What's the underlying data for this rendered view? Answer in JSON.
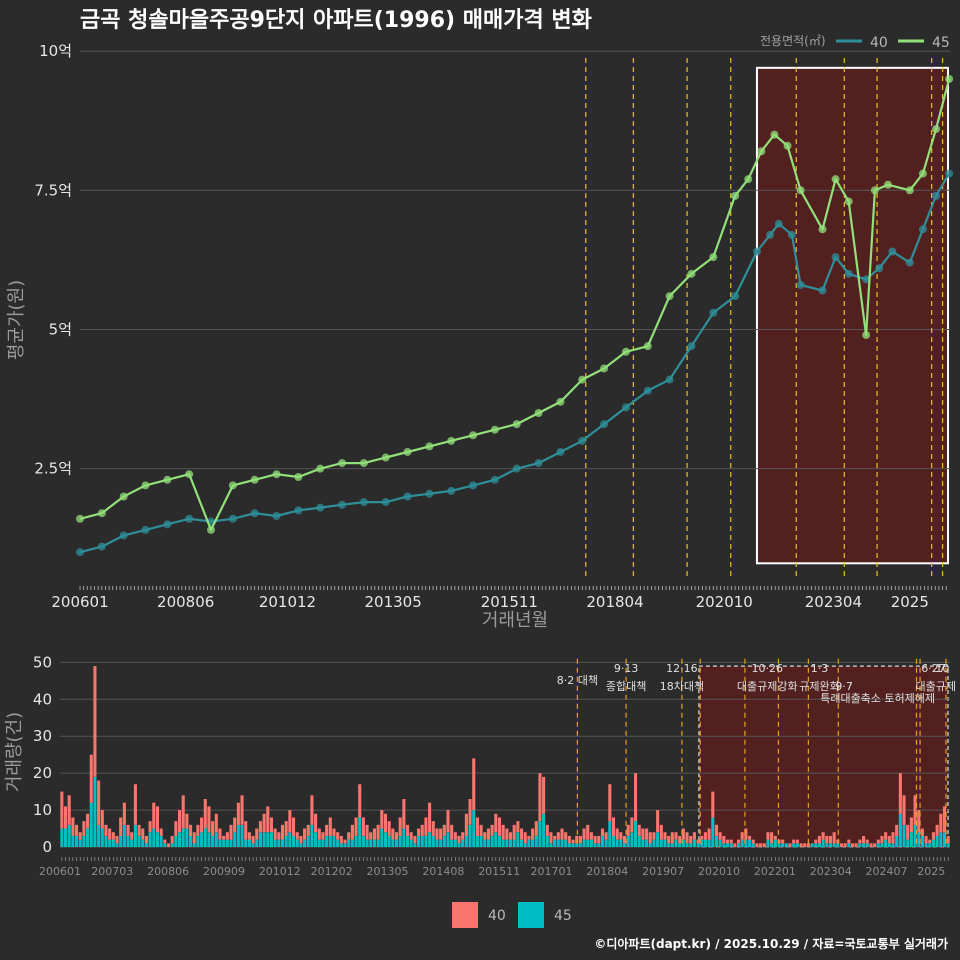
{
  "title": "금곡 청솔마을주공9단지 아파트(1996) 매매가격 변화",
  "credit": "©디아파트(dapt.kr) / 2025.10.29 / 자료=국토교통부 실거래가",
  "colors": {
    "background": "#2b2b2b",
    "line40": "#2e8f99",
    "line45": "#93e07a",
    "bar40": "#f8766d",
    "bar45": "#00bfc4",
    "policy": "#e6c229",
    "highlight": "#5a1e1e"
  },
  "chart_data": [
    {
      "type": "line",
      "name": "price",
      "ylabel": "평균가(원)",
      "xlabel": "거래년월",
      "ylim": [
        0.5,
        10.2
      ],
      "xlim": [
        2006.0,
        2025.92
      ],
      "yticks": [
        {
          "value": 2.5,
          "label": "2.5억"
        },
        {
          "value": 5.0,
          "label": "5억"
        },
        {
          "value": 7.5,
          "label": "7.5억"
        },
        {
          "value": 10.0,
          "label": "10억"
        }
      ],
      "xticks": [
        {
          "value": 2006.0,
          "label": "200601"
        },
        {
          "value": 2008.42,
          "label": "200806"
        },
        {
          "value": 2010.75,
          "label": "201012"
        },
        {
          "value": 2013.17,
          "label": "201305"
        },
        {
          "value": 2015.83,
          "label": "201511"
        },
        {
          "value": 2018.25,
          "label": "201804"
        },
        {
          "value": 2020.75,
          "label": "202010"
        },
        {
          "value": 2023.25,
          "label": "202304"
        },
        {
          "value": 2025.0,
          "label": "2025"
        }
      ],
      "legend_title": "전용면적(㎡)",
      "highlight_range": [
        2021.5,
        2025.92
      ],
      "highlight_ylim": [
        0.8,
        9.7
      ],
      "policy_lines": [
        2017.58,
        2018.67,
        2019.9,
        2020.9,
        2022.4,
        2023.5,
        2024.25,
        2025.5,
        2025.75
      ],
      "series": [
        {
          "name": "40",
          "color": "#2e8f99",
          "x": [
            2006.0,
            2006.5,
            2007.0,
            2007.5,
            2008.0,
            2008.5,
            2009.0,
            2009.5,
            2010.0,
            2010.5,
            2011.0,
            2011.5,
            2012.0,
            2012.5,
            2013.0,
            2013.5,
            2014.0,
            2014.5,
            2015.0,
            2015.5,
            2016.0,
            2016.5,
            2017.0,
            2017.5,
            2018.0,
            2018.5,
            2019.0,
            2019.5,
            2020.0,
            2020.5,
            2021.0,
            2021.5,
            2021.8,
            2022.0,
            2022.3,
            2022.5,
            2023.0,
            2023.3,
            2023.6,
            2024.0,
            2024.3,
            2024.6,
            2025.0,
            2025.3,
            2025.6,
            2025.9
          ],
          "y": [
            1.0,
            1.1,
            1.3,
            1.4,
            1.5,
            1.6,
            1.55,
            1.6,
            1.7,
            1.65,
            1.75,
            1.8,
            1.85,
            1.9,
            1.9,
            2.0,
            2.05,
            2.1,
            2.2,
            2.3,
            2.5,
            2.6,
            2.8,
            3.0,
            3.3,
            3.6,
            3.9,
            4.1,
            4.7,
            5.3,
            5.6,
            6.4,
            6.7,
            6.9,
            6.7,
            5.8,
            5.7,
            6.3,
            6.0,
            5.9,
            6.1,
            6.4,
            6.2,
            6.8,
            7.4,
            7.8
          ]
        },
        {
          "name": "45",
          "color": "#93e07a",
          "x": [
            2006.0,
            2006.5,
            2007.0,
            2007.5,
            2008.0,
            2008.5,
            2009.0,
            2009.5,
            2010.0,
            2010.5,
            2011.0,
            2011.5,
            2012.0,
            2012.5,
            2013.0,
            2013.5,
            2014.0,
            2014.5,
            2015.0,
            2015.5,
            2016.0,
            2016.5,
            2017.0,
            2017.5,
            2018.0,
            2018.5,
            2019.0,
            2019.5,
            2020.0,
            2020.5,
            2021.0,
            2021.3,
            2021.6,
            2021.9,
            2022.2,
            2022.5,
            2023.0,
            2023.3,
            2023.6,
            2024.0,
            2024.2,
            2024.5,
            2025.0,
            2025.3,
            2025.6,
            2025.9
          ],
          "y": [
            1.6,
            1.7,
            2.0,
            2.2,
            2.3,
            2.4,
            1.4,
            2.2,
            2.3,
            2.4,
            2.35,
            2.5,
            2.6,
            2.6,
            2.7,
            2.8,
            2.9,
            3.0,
            3.1,
            3.2,
            3.3,
            3.5,
            3.7,
            4.1,
            4.3,
            4.6,
            4.7,
            5.6,
            6.0,
            6.3,
            7.4,
            7.7,
            8.2,
            8.5,
            8.3,
            7.5,
            6.8,
            7.7,
            7.3,
            4.9,
            7.5,
            7.6,
            7.5,
            7.8,
            8.6,
            9.5
          ]
        }
      ]
    },
    {
      "type": "bar",
      "name": "volume",
      "stacked": true,
      "ylabel": "거래량(건)",
      "ylim": [
        0,
        52
      ],
      "yticks": [
        0,
        10,
        20,
        30,
        40,
        50
      ],
      "xticks": [
        {
          "value": 2006.0,
          "label": "200601"
        },
        {
          "value": 2007.17,
          "label": "200703"
        },
        {
          "value": 2008.42,
          "label": "200806"
        },
        {
          "value": 2009.67,
          "label": "200909"
        },
        {
          "value": 2010.92,
          "label": "201012"
        },
        {
          "value": 2012.08,
          "label": "201202"
        },
        {
          "value": 2013.33,
          "label": "201305"
        },
        {
          "value": 2014.58,
          "label": "201408"
        },
        {
          "value": 2015.83,
          "label": "201511"
        },
        {
          "value": 2017.0,
          "label": "201701"
        },
        {
          "value": 2018.25,
          "label": "201804"
        },
        {
          "value": 2019.5,
          "label": "201907"
        },
        {
          "value": 2020.75,
          "label": "202010"
        },
        {
          "value": 2022.0,
          "label": "202201"
        },
        {
          "value": 2023.25,
          "label": "202304"
        },
        {
          "value": 2024.5,
          "label": "202407"
        },
        {
          "value": 2025.5,
          "label": "2025"
        }
      ],
      "highlight_range": [
        2020.3,
        2025.92
      ],
      "policy_lines": [
        2017.58,
        2018.67,
        2019.92,
        2020.33,
        2021.33,
        2022.08,
        2022.75,
        2023.42,
        2025.17,
        2025.25,
        2025.83
      ],
      "annotations": [
        {
          "x": 2017.58,
          "row": 1,
          "text": "8·2 대책"
        },
        {
          "x": 2018.67,
          "row": 0,
          "text": "9·13"
        },
        {
          "x": 2018.67,
          "row": 1.5,
          "text": "종합대책"
        },
        {
          "x": 2019.92,
          "row": 0,
          "text": "12·16"
        },
        {
          "x": 2019.92,
          "row": 1.5,
          "text": "18차대책"
        },
        {
          "x": 2021.83,
          "row": 0,
          "text": "10·26"
        },
        {
          "x": 2021.83,
          "row": 1.5,
          "text": "대출규제강화"
        },
        {
          "x": 2023.0,
          "row": 0,
          "text": "1·3"
        },
        {
          "x": 2023.0,
          "row": 1.5,
          "text": "규제완화"
        },
        {
          "x": 2023.55,
          "row": 1.5,
          "text": "9·7"
        },
        {
          "x": 2024.3,
          "row": 2.5,
          "text": "특례대출축소 토허제해제"
        },
        {
          "x": 2025.55,
          "row": 0,
          "text": "6·27"
        },
        {
          "x": 2025.75,
          "row": 0,
          "text": "10"
        },
        {
          "x": 2025.6,
          "row": 1.5,
          "text": "대출규제"
        }
      ],
      "series": [
        {
          "name": "40",
          "color": "#f8766d"
        },
        {
          "name": "45",
          "color": "#00bfc4"
        }
      ],
      "months_start": 2006.0,
      "totals": [
        15,
        11,
        14,
        8,
        6,
        4,
        7,
        9,
        25,
        49,
        18,
        10,
        6,
        5,
        4,
        3,
        8,
        12,
        6,
        4,
        17,
        6,
        5,
        3,
        7,
        12,
        11,
        5,
        2,
        1,
        3,
        7,
        10,
        14,
        9,
        6,
        4,
        6,
        8,
        13,
        11,
        7,
        9,
        5,
        3,
        4,
        6,
        8,
        12,
        14,
        7,
        4,
        3,
        5,
        7,
        9,
        11,
        8,
        5,
        4,
        6,
        7,
        10,
        8,
        4,
        3,
        5,
        6,
        14,
        9,
        5,
        4,
        6,
        8,
        5,
        4,
        3,
        2,
        4,
        6,
        8,
        17,
        8,
        6,
        4,
        5,
        6,
        10,
        9,
        7,
        5,
        4,
        8,
        13,
        6,
        4,
        3,
        5,
        6,
        8,
        12,
        7,
        5,
        5,
        6,
        10,
        6,
        4,
        3,
        4,
        9,
        13,
        24,
        8,
        6,
        4,
        5,
        6,
        9,
        8,
        6,
        5,
        4,
        6,
        7,
        5,
        4,
        3,
        5,
        7,
        20,
        19,
        6,
        4,
        3,
        4,
        5,
        4,
        3,
        2,
        3,
        3,
        5,
        6,
        4,
        3,
        3,
        5,
        4,
        17,
        8,
        5,
        4,
        3,
        6,
        8,
        20,
        6,
        5,
        5,
        4,
        4,
        10,
        6,
        4,
        3,
        4,
        4,
        3,
        5,
        4,
        3,
        4,
        2,
        3,
        4,
        5,
        15,
        6,
        4,
        3,
        2,
        2,
        1,
        2,
        4,
        5,
        3,
        2,
        1,
        1,
        1,
        4,
        4,
        3,
        2,
        2,
        1,
        1,
        2,
        2,
        1,
        1,
        1,
        1,
        2,
        3,
        4,
        3,
        3,
        4,
        2,
        1,
        1,
        2,
        1,
        1,
        2,
        3,
        2,
        1,
        1,
        2,
        3,
        4,
        3,
        4,
        6,
        20,
        14,
        6,
        8,
        14,
        10,
        5,
        3,
        2,
        4,
        6,
        9,
        11,
        3
      ],
      "share45": 0.55
    }
  ]
}
